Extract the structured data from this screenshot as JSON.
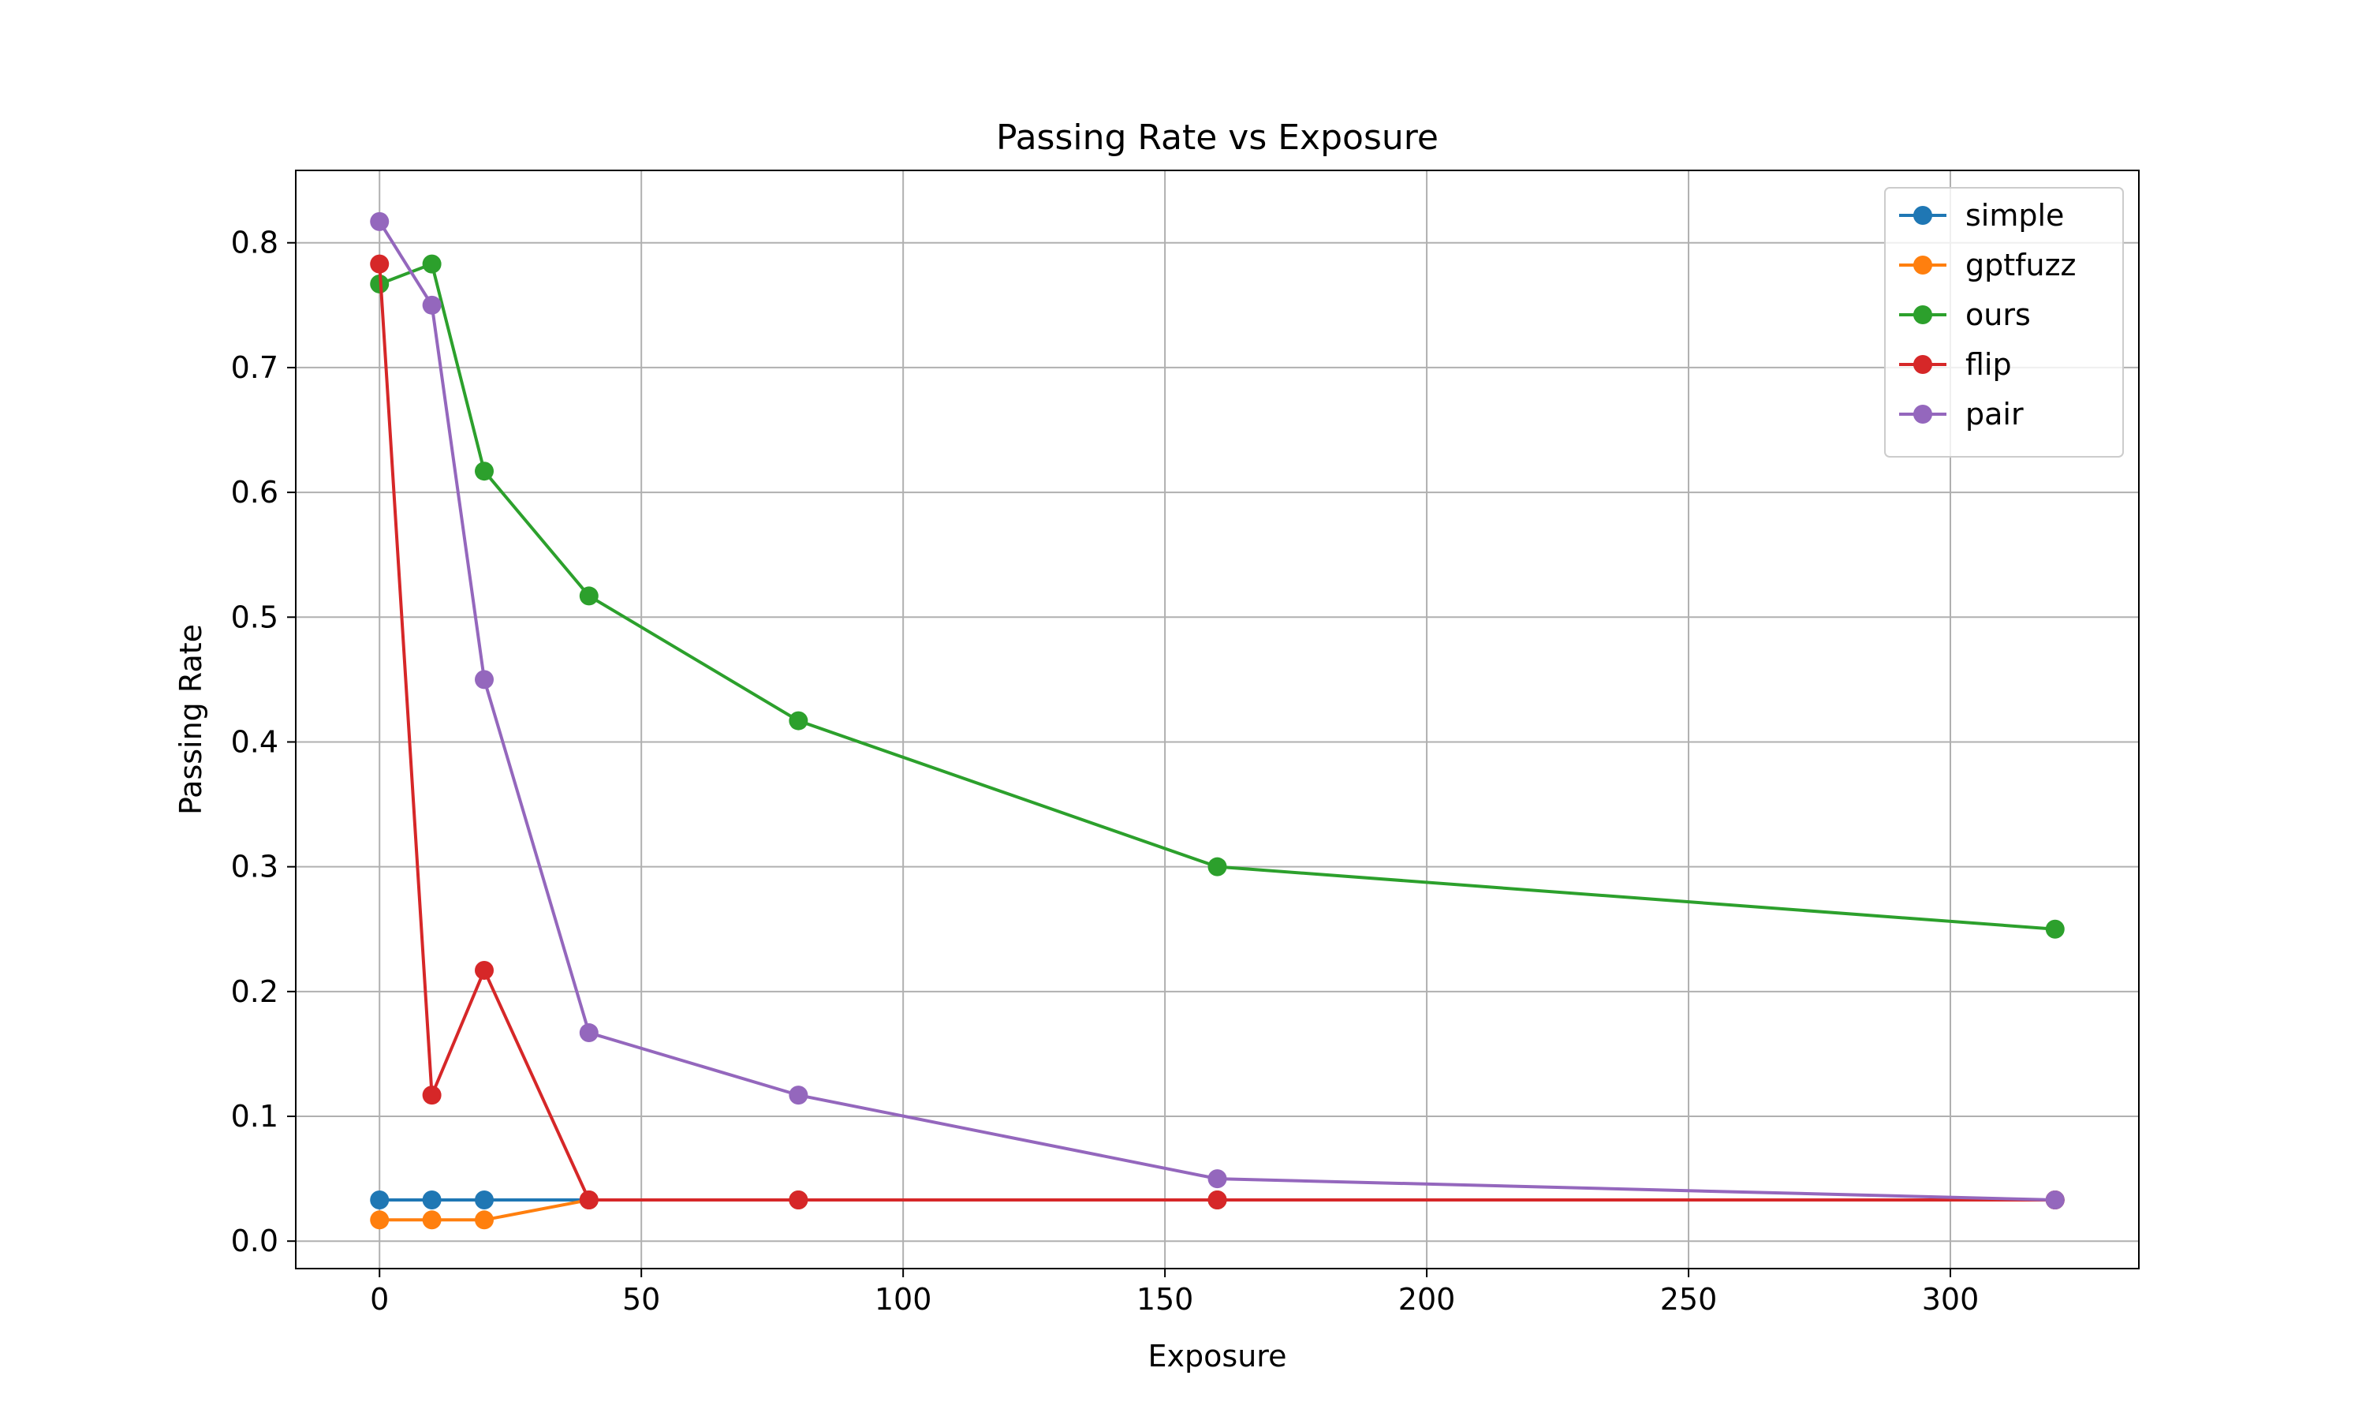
{
  "chart_data": {
    "type": "line",
    "title": "Passing Rate vs Exposure",
    "xlabel": "Exposure",
    "ylabel": "Passing Rate",
    "xlim": [
      -16,
      336
    ],
    "ylim": [
      -0.022,
      0.858
    ],
    "xticks": [
      0,
      50,
      100,
      150,
      200,
      250,
      300
    ],
    "yticks": [
      0.0,
      0.1,
      0.2,
      0.3,
      0.4,
      0.5,
      0.6,
      0.7,
      0.8
    ],
    "grid": true,
    "legend_position": "top-right",
    "x": [
      0,
      10,
      20,
      40,
      80,
      160,
      320
    ],
    "series": [
      {
        "name": "simple",
        "color": "#1f77b4",
        "values": [
          0.033,
          0.033,
          0.033,
          0.033,
          0.033,
          0.033,
          0.033
        ]
      },
      {
        "name": "gptfuzz",
        "color": "#ff7f0e",
        "values": [
          0.017,
          0.017,
          0.017,
          0.033,
          0.033,
          0.033,
          0.033
        ]
      },
      {
        "name": "ours",
        "color": "#2ca02c",
        "values": [
          0.767,
          0.783,
          0.617,
          0.517,
          0.417,
          0.3,
          0.25
        ]
      },
      {
        "name": "flip",
        "color": "#d62728",
        "values": [
          0.783,
          0.117,
          0.217,
          0.033,
          0.033,
          0.033,
          0.033
        ]
      },
      {
        "name": "pair",
        "color": "#9467bd",
        "values": [
          0.817,
          0.75,
          0.45,
          0.167,
          0.117,
          0.05,
          0.033
        ]
      }
    ]
  }
}
